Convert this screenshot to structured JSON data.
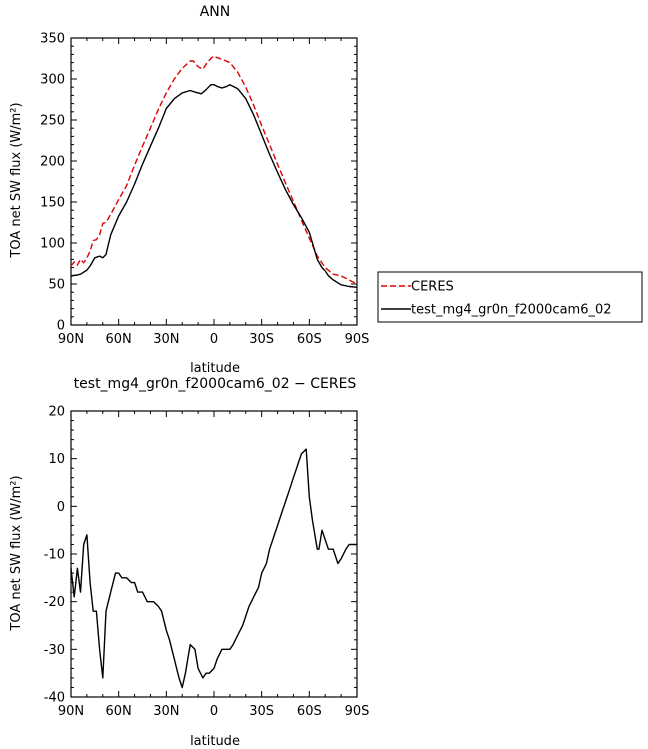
{
  "chart_data": [
    {
      "type": "line",
      "title": "ANN",
      "xlabel": "latitude",
      "ylabel": "TOA net SW flux (W/m²)",
      "xticks": [
        "90N",
        "60N",
        "30N",
        "0",
        "30S",
        "60S",
        "90S"
      ],
      "yticks": [
        "0",
        "50",
        "100",
        "150",
        "200",
        "250",
        "300",
        "350"
      ],
      "xlim": [
        -90,
        90
      ],
      "ylim": [
        0,
        350
      ],
      "legend_position": "right",
      "series": [
        {
          "name": "CERES",
          "color": "#dd0000",
          "dash": "dashed",
          "x": [
            -90,
            -88,
            -86,
            -84,
            -82,
            -80,
            -78,
            -76,
            -74,
            -72,
            -70,
            -68,
            -65,
            -60,
            -55,
            -50,
            -45,
            -40,
            -35,
            -30,
            -25,
            -20,
            -15,
            -13,
            -10,
            -7,
            -5,
            -2,
            0,
            2,
            5,
            10,
            15,
            20,
            25,
            30,
            35,
            40,
            45,
            50,
            55,
            60,
            65,
            70,
            75,
            80,
            85,
            88,
            90
          ],
          "values": [
            72,
            77,
            73,
            80,
            76,
            82,
            90,
            103,
            104,
            110,
            124,
            125,
            135,
            153,
            170,
            195,
            218,
            240,
            263,
            283,
            300,
            313,
            322,
            322,
            315,
            312,
            318,
            325,
            328,
            326,
            324,
            320,
            308,
            290,
            268,
            243,
            220,
            196,
            173,
            151,
            128,
            106,
            84,
            70,
            62,
            60,
            55,
            52,
            51
          ]
        },
        {
          "name": "test_mg4_gr0n_f2000cam6_02",
          "color": "#000000",
          "dash": "solid",
          "x": [
            -90,
            -86,
            -84,
            -80,
            -78,
            -75,
            -72,
            -70,
            -68,
            -65,
            -60,
            -55,
            -50,
            -45,
            -40,
            -35,
            -30,
            -25,
            -20,
            -15,
            -12,
            -8,
            -5,
            -2,
            0,
            2,
            5,
            8,
            10,
            15,
            20,
            25,
            30,
            35,
            40,
            45,
            50,
            55,
            60,
            65,
            68,
            70,
            72,
            75,
            80,
            85,
            90
          ],
          "values": [
            60,
            61,
            62,
            67,
            72,
            82,
            84,
            82,
            86,
            110,
            133,
            150,
            172,
            196,
            218,
            240,
            264,
            276,
            283,
            286,
            284,
            282,
            287,
            293,
            293,
            291,
            289,
            291,
            293,
            288,
            276,
            256,
            232,
            208,
            186,
            165,
            147,
            131,
            113,
            80,
            70,
            66,
            60,
            55,
            49,
            47,
            46
          ]
        }
      ]
    },
    {
      "type": "line",
      "title": "test_mg4_gr0n_f2000cam6_02 − CERES",
      "xlabel": "latitude",
      "ylabel": "TOA net SW flux (W/m²)",
      "xticks": [
        "90N",
        "60N",
        "30N",
        "0",
        "30S",
        "60S",
        "90S"
      ],
      "yticks": [
        "-40",
        "-30",
        "-20",
        "-10",
        "0",
        "10",
        "20"
      ],
      "xlim": [
        -90,
        90
      ],
      "ylim": [
        -40,
        20
      ],
      "series": [
        {
          "color": "#000000",
          "dash": "solid",
          "x": [
            -90,
            -88,
            -86,
            -84,
            -82,
            -80,
            -78,
            -76,
            -74,
            -72,
            -70,
            -68,
            -65,
            -62,
            -60,
            -58,
            -55,
            -52,
            -50,
            -48,
            -45,
            -42,
            -40,
            -38,
            -35,
            -33,
            -30,
            -28,
            -25,
            -22,
            -20,
            -18,
            -15,
            -12,
            -10,
            -7,
            -5,
            -3,
            0,
            2,
            5,
            8,
            10,
            12,
            15,
            18,
            20,
            22,
            25,
            28,
            30,
            33,
            35,
            38,
            40,
            42,
            45,
            48,
            50,
            52,
            55,
            58,
            60,
            62,
            64,
            65,
            66,
            68,
            70,
            72,
            75,
            78,
            80,
            83,
            85,
            88,
            90
          ],
          "values": [
            -13,
            -19,
            -13,
            -18,
            -8,
            -6,
            -16,
            -22,
            -22,
            -30,
            -36,
            -22,
            -18,
            -14,
            -14,
            -15,
            -15,
            -16,
            -16,
            -18,
            -18,
            -20,
            -20,
            -20,
            -21,
            -22,
            -26,
            -28,
            -32,
            -36,
            -38,
            -35,
            -29,
            -30,
            -34,
            -36,
            -35,
            -35,
            -34,
            -32,
            -30,
            -30,
            -30,
            -29,
            -27,
            -25,
            -23,
            -21,
            -19,
            -17,
            -14,
            -12,
            -9,
            -6,
            -4,
            -2,
            1,
            4,
            6,
            8,
            11,
            12,
            2,
            -3,
            -7,
            -9,
            -9,
            -5,
            -7,
            -9,
            -9,
            -12,
            -11,
            -9,
            -8,
            -8,
            -8
          ]
        }
      ]
    }
  ]
}
